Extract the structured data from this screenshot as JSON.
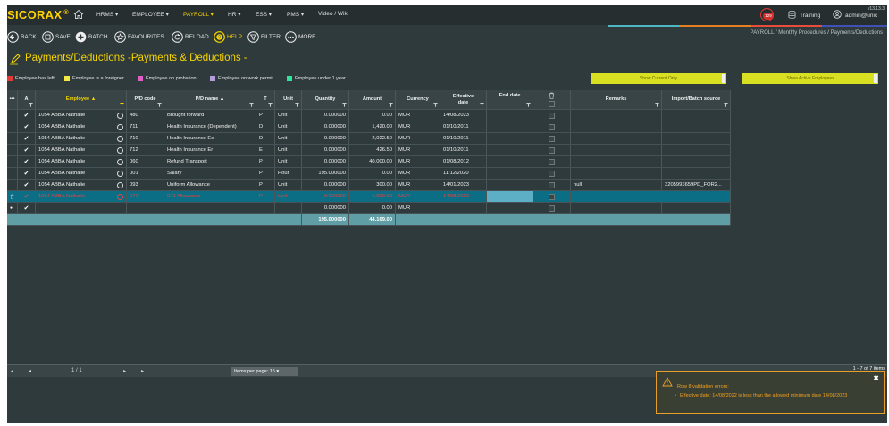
{
  "app": {
    "logo": "SICORAX",
    "logo_mark": "®",
    "version": "v13.13.3"
  },
  "nav": [
    {
      "label": "HRMS ▾"
    },
    {
      "label": "EMPLOYEE ▾"
    },
    {
      "label": "PAYROLL ▾"
    },
    {
      "label": "HR ▾"
    },
    {
      "label": "ESS ▾"
    },
    {
      "label": "PMS ▾"
    },
    {
      "label": "Video / Wiki"
    }
  ],
  "notifications": {
    "count": "129"
  },
  "training_label": "Training",
  "user_label": "admin@unic",
  "toolbar": {
    "back": "BACK",
    "save": "SAVE",
    "batch": "BATCH",
    "favourites": "FAVOURITES",
    "reload": "RELOAD",
    "help": "HELP",
    "filter": "FILTER",
    "more": "MORE"
  },
  "breadcrumb": {
    "a": "PAYROLL",
    "b": "Monthly Procedures",
    "c": "Payments/Deductions",
    "sep": "/"
  },
  "page_title": "Payments/Deductions -Payments & Deductions -",
  "legend": [
    {
      "label": "Employee has left",
      "color": "#e53935"
    },
    {
      "label": "Employee is a foreigner",
      "color": "#f4e842"
    },
    {
      "label": "Employee on probation",
      "color": "#e05fc4"
    },
    {
      "label": "Employee on work permit",
      "color": "#b39ddb"
    },
    {
      "label": "Employee under 1 year",
      "color": "#2ee59d"
    }
  ],
  "buttons": {
    "show_current_only": "Show Current Only",
    "show_active": "Show Active Employees"
  },
  "grid": {
    "headers": {
      "dots": "•••",
      "a": "A",
      "employee": "Employee ▲",
      "pd_code": "P/D code",
      "pd_name": "P/D name ▲",
      "t": "T",
      "unit": "Unit",
      "quantity": "Quantity",
      "amount": "Amount",
      "currency": "Currency",
      "eff1": "Effective",
      "eff2": "date",
      "end_date": "End date",
      "remarks": "Remarks",
      "import_source": "Import/Batch source"
    },
    "rows": [
      {
        "chk": "✔",
        "employee": "1054 ABBA Nathalie",
        "code": "480",
        "name": "Brought forward",
        "t": "P",
        "unit": "Unit",
        "qty": "0.000000",
        "amount": "0.00",
        "currency": "MUR",
        "eff": "14/08/2023",
        "end": "",
        "remarks": "",
        "src": ""
      },
      {
        "chk": "✔",
        "employee": "1054 ABBA Nathalie",
        "code": "711",
        "name": "Health Insurance (Dependent)",
        "t": "D",
        "unit": "Unit",
        "qty": "0.000000",
        "amount": "1,420.00",
        "currency": "MUR",
        "eff": "01/10/2011",
        "end": "",
        "remarks": "",
        "src": ""
      },
      {
        "chk": "✔",
        "employee": "1054 ABBA Nathalie",
        "code": "710",
        "name": "Health Insurance Ee",
        "t": "D",
        "unit": "Unit",
        "qty": "0.000000",
        "amount": "2,022.50",
        "currency": "MUR",
        "eff": "01/10/2011",
        "end": "",
        "remarks": "",
        "src": ""
      },
      {
        "chk": "✔",
        "employee": "1054 ABBA Nathalie",
        "code": "712",
        "name": "Health Insurance Er",
        "t": "E",
        "unit": "Unit",
        "qty": "0.000000",
        "amount": "426.50",
        "currency": "MUR",
        "eff": "01/10/2011",
        "end": "",
        "remarks": "",
        "src": ""
      },
      {
        "chk": "✔",
        "employee": "1054 ABBA Nathalie",
        "code": "060",
        "name": "Refund Transport",
        "t": "P",
        "unit": "Unit",
        "qty": "0.000000",
        "amount": "40,000.00",
        "currency": "MUR",
        "eff": "01/08/2012",
        "end": "",
        "remarks": "",
        "src": ""
      },
      {
        "chk": "✔",
        "employee": "1054 ABBA Nathalie",
        "code": "001",
        "name": "Salary",
        "t": "P",
        "unit": "Hour",
        "qty": "195.000000",
        "amount": "0.00",
        "currency": "MUR",
        "eff": "11/12/2020",
        "end": "",
        "remarks": "",
        "src": ""
      },
      {
        "chk": "✔",
        "employee": "1054 ABBA Nathalie",
        "code": "093",
        "name": "Uniform Allowance",
        "t": "P",
        "unit": "Unit",
        "qty": "0.000000",
        "amount": "300.00",
        "currency": "MUR",
        "eff": "14/01/2023",
        "end": "",
        "remarks": "null",
        "src": "3205993659PD_FOR2..."
      }
    ],
    "selected_row": {
      "chk": "✔",
      "employee": "1054 ABBA Nathalie",
      "code": "071",
      "name": "071 Allowance",
      "t": "P",
      "unit": "Unit",
      "qty": "0.000000",
      "amount": "1,000.00",
      "currency": "MUR",
      "eff": "14/08/2022",
      "end": "",
      "remarks": "",
      "src": ""
    },
    "new_row": {
      "chk": "✔",
      "qty": "0.000000",
      "amount": "0.00",
      "currency": "MUR"
    },
    "totals": {
      "qty": "195.000000",
      "amount": "44,169.00"
    }
  },
  "pager": {
    "page": "1 / 1",
    "items_per_page": "Items per page: 15 ▾",
    "count": "1 - 7 of 7 items"
  },
  "toast": {
    "title": "Row 8 validation errors:",
    "message": "Effective date: 14/08/2022 is less than the allowed minimum date 14/08/2023"
  }
}
